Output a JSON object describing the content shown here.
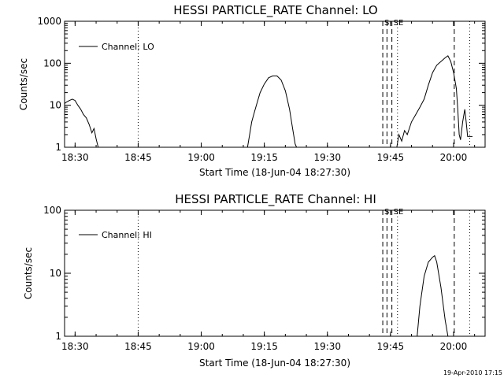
{
  "chart_data": [
    {
      "type": "line",
      "title": "HESSI PARTICLE_RATE Channel: LO",
      "xlabel": "Start Time (18-Jun-04 18:27:30)",
      "ylabel": "Counts/sec",
      "y_scale": "log",
      "xlim": [
        "18:27:30",
        "20:07:30"
      ],
      "ylim": [
        1,
        1000
      ],
      "x_ticks": [
        "18:30",
        "18:45",
        "19:00",
        "19:15",
        "19:30",
        "19:45",
        "20:00"
      ],
      "y_ticks": [
        "1",
        "10",
        "100",
        "1000"
      ],
      "legend": {
        "position": "top-left",
        "entries": [
          "Channel: LO"
        ]
      },
      "markers": [
        {
          "label": "S",
          "time": "19:43:10",
          "style": "dashed"
        },
        {
          "label": "",
          "time": "19:44:10",
          "style": "dashed"
        },
        {
          "label": "SE",
          "time": "19:45:20",
          "style": "dashed"
        },
        {
          "label": "",
          "time": "19:46:40",
          "style": "dotted"
        },
        {
          "label": "",
          "time": "18:45:00",
          "style": "dotted"
        },
        {
          "label": "",
          "time": "20:00:10",
          "style": "dashed"
        },
        {
          "label": "",
          "time": "20:03:50",
          "style": "dotted"
        }
      ],
      "series": [
        {
          "name": "Channel: LO",
          "segments": [
            [
              [
                "18:27:30",
                11
              ],
              [
                "18:28:00",
                12
              ],
              [
                "18:28:40",
                13
              ],
              [
                "18:29:20",
                14
              ],
              [
                "18:30:00",
                13
              ],
              [
                "18:30:40",
                10
              ],
              [
                "18:31:20",
                8
              ],
              [
                "18:32:00",
                6
              ],
              [
                "18:32:40",
                5
              ],
              [
                "18:33:20",
                3.5
              ],
              [
                "18:34:00",
                2.2
              ],
              [
                "18:34:30",
                2.8
              ],
              [
                "18:35:00",
                1.6
              ],
              [
                "18:35:30",
                1
              ]
            ],
            [
              [
                "19:11:00",
                1
              ],
              [
                "19:11:30",
                2
              ],
              [
                "19:12:00",
                4
              ],
              [
                "19:12:40",
                7
              ],
              [
                "19:13:20",
                12
              ],
              [
                "19:14:00",
                20
              ],
              [
                "19:15:00",
                32
              ],
              [
                "19:16:00",
                45
              ],
              [
                "19:17:00",
                50
              ],
              [
                "19:18:00",
                50
              ],
              [
                "19:19:00",
                40
              ],
              [
                "19:20:00",
                22
              ],
              [
                "19:21:00",
                8
              ],
              [
                "19:21:40",
                3
              ],
              [
                "19:22:20",
                1.2
              ],
              [
                "19:22:40",
                1
              ]
            ],
            [
              [
                "19:46:30",
                1
              ],
              [
                "19:47:00",
                2
              ],
              [
                "19:47:40",
                1.4
              ],
              [
                "19:48:20",
                2.5
              ],
              [
                "19:49:00",
                2
              ],
              [
                "19:50:00",
                4
              ],
              [
                "19:51:00",
                6
              ],
              [
                "19:52:00",
                9
              ],
              [
                "19:53:00",
                14
              ],
              [
                "19:54:00",
                30
              ],
              [
                "19:55:00",
                60
              ],
              [
                "19:56:00",
                90
              ],
              [
                "19:57:00",
                110
              ],
              [
                "19:58:00",
                135
              ],
              [
                "19:58:40",
                150
              ],
              [
                "19:59:20",
                110
              ],
              [
                "20:00:00",
                60
              ],
              [
                "20:00:40",
                25
              ],
              [
                "20:01:00",
                8
              ],
              [
                "20:01:20",
                2
              ],
              [
                "20:01:40",
                1.5
              ],
              [
                "20:02:10",
                4
              ],
              [
                "20:02:40",
                8
              ],
              [
                "20:03:00",
                4
              ],
              [
                "20:03:20",
                1.8
              ],
              [
                "20:04:30",
                1.8
              ]
            ]
          ]
        }
      ]
    },
    {
      "type": "line",
      "title": "HESSI PARTICLE_RATE Channel: HI",
      "xlabel": "Start Time (18-Jun-04 18:27:30)",
      "ylabel": "Counts/sec",
      "y_scale": "log",
      "xlim": [
        "18:27:30",
        "20:07:30"
      ],
      "ylim": [
        1,
        100
      ],
      "x_ticks": [
        "18:30",
        "18:45",
        "19:00",
        "19:15",
        "19:30",
        "19:45",
        "20:00"
      ],
      "y_ticks": [
        "1",
        "10",
        "100"
      ],
      "legend": {
        "position": "top-left",
        "entries": [
          "Channel: HI"
        ]
      },
      "markers": [
        {
          "label": "S",
          "time": "19:43:10",
          "style": "dashed"
        },
        {
          "label": "",
          "time": "19:44:10",
          "style": "dashed"
        },
        {
          "label": "SE",
          "time": "19:45:20",
          "style": "dashed"
        },
        {
          "label": "",
          "time": "19:46:40",
          "style": "dotted"
        },
        {
          "label": "",
          "time": "18:45:00",
          "style": "dotted"
        },
        {
          "label": "",
          "time": "20:00:10",
          "style": "dashed"
        },
        {
          "label": "",
          "time": "20:03:50",
          "style": "dotted"
        }
      ],
      "series": [
        {
          "name": "Channel: HI",
          "segments": [
            [
              [
                "19:51:20",
                1
              ],
              [
                "19:52:00",
                3
              ],
              [
                "19:53:00",
                9
              ],
              [
                "19:54:00",
                15
              ],
              [
                "19:55:00",
                18
              ],
              [
                "19:55:30",
                19
              ],
              [
                "19:56:00",
                15
              ],
              [
                "19:57:00",
                6
              ],
              [
                "19:58:00",
                1.8
              ],
              [
                "19:58:40",
                1
              ]
            ]
          ]
        }
      ]
    }
  ],
  "footer": {
    "date": "19-Apr-2010 17:15"
  }
}
